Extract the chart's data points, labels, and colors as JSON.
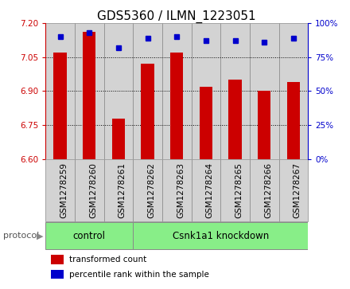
{
  "title": "GDS5360 / ILMN_1223051",
  "samples": [
    "GSM1278259",
    "GSM1278260",
    "GSM1278261",
    "GSM1278262",
    "GSM1278263",
    "GSM1278264",
    "GSM1278265",
    "GSM1278266",
    "GSM1278267"
  ],
  "bar_values": [
    7.07,
    7.16,
    6.78,
    7.02,
    7.07,
    6.92,
    6.95,
    6.9,
    6.94
  ],
  "percentile_values": [
    90,
    93,
    82,
    89,
    90,
    87,
    87,
    86,
    89
  ],
  "ymin": 6.6,
  "ymax": 7.2,
  "yticks_left": [
    6.6,
    6.75,
    6.9,
    7.05,
    7.2
  ],
  "yticks_right": [
    0,
    25,
    50,
    75,
    100
  ],
  "bar_color": "#cc0000",
  "marker_color": "#0000cc",
  "control_count": 3,
  "knockdown_count": 6,
  "control_label": "control",
  "knockdown_label": "Csnk1a1 knockdown",
  "protocol_label": "protocol",
  "legend_bar_label": "transformed count",
  "legend_marker_label": "percentile rank within the sample",
  "cell_bg_color": "#d3d3d3",
  "group_color": "#88ee88",
  "title_fontsize": 11,
  "tick_fontsize": 7.5
}
